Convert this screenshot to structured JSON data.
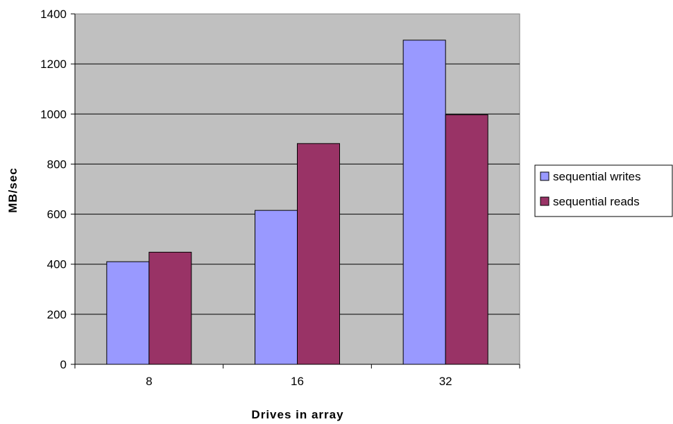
{
  "chart_data": {
    "type": "bar",
    "title": "",
    "xlabel": "Drives in array",
    "ylabel": "MB/sec",
    "categories": [
      "8",
      "16",
      "32"
    ],
    "series": [
      {
        "name": "sequential writes",
        "values": [
          410,
          615,
          1295
        ],
        "color": "#9999ff"
      },
      {
        "name": "sequential reads",
        "values": [
          448,
          882,
          997
        ],
        "color": "#993366"
      }
    ],
    "ylim": [
      0,
      1400
    ],
    "yticks": [
      0,
      200,
      400,
      600,
      800,
      1000,
      1200,
      1400
    ],
    "grid": true,
    "plot_background": "#c0c0c0",
    "legend_position": "right"
  }
}
